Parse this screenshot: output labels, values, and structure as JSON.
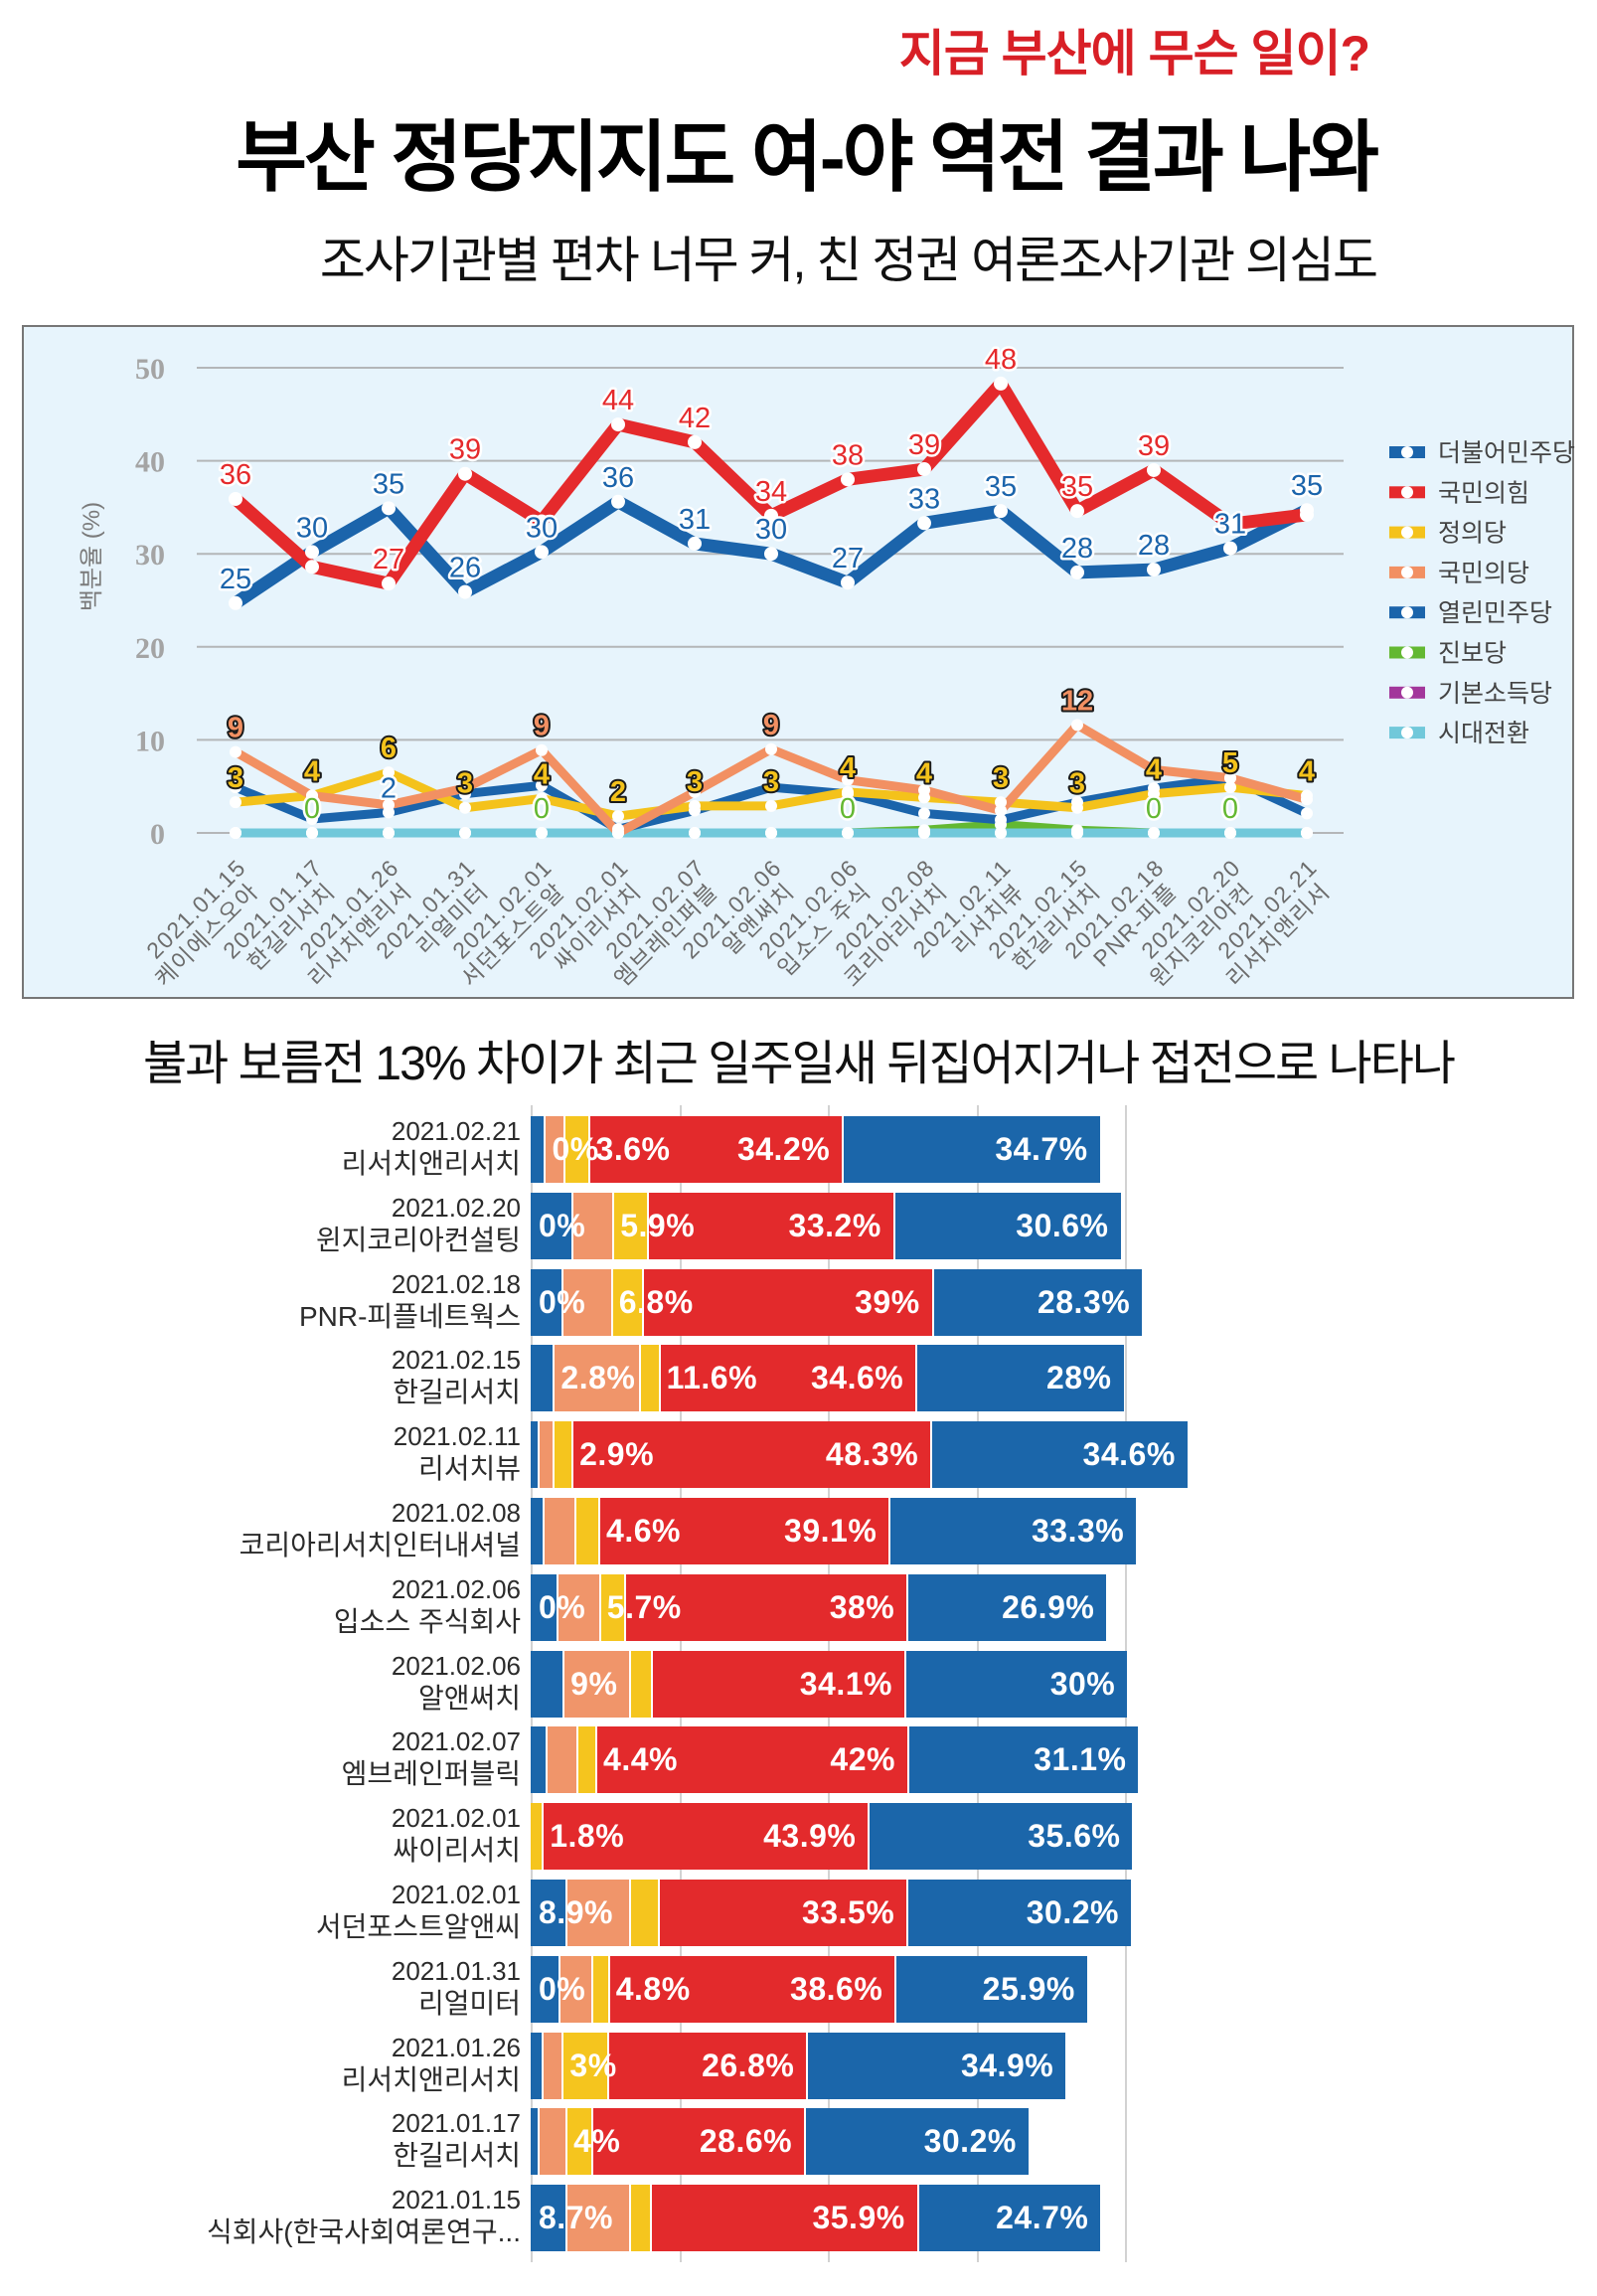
{
  "header": {
    "kicker": "지금 부산에 무슨 일이?",
    "title": "부산 정당지지도 여-야 역전 결과 나와",
    "subtitle": "조사기관별 편차 너무 커, 친 정권 여론조사기관 의심도"
  },
  "section_title": "불과 보름전 13% 차이가 최근 일주일새 뒤집어지거나 접전으로 나타나",
  "chart_data": [
    {
      "type": "line",
      "title": "",
      "xlabel": "",
      "ylabel": "백분율 (%)",
      "ylim": [
        0,
        50
      ],
      "yticks": [
        0,
        10,
        20,
        30,
        40,
        50
      ],
      "grid": true,
      "legend_position": "right",
      "categories": [
        {
          "date": "2021.01.15",
          "pollster": "케이에스오아"
        },
        {
          "date": "2021.01.17",
          "pollster": "한길리서치"
        },
        {
          "date": "2021.01.26",
          "pollster": "리서치앤리서"
        },
        {
          "date": "2021.01.31",
          "pollster": "리얼미터"
        },
        {
          "date": "2021.02.01",
          "pollster": "서던포스트알"
        },
        {
          "date": "2021.02.01",
          "pollster": "싸이리서치"
        },
        {
          "date": "2021.02.07",
          "pollster": "엠브레인퍼블"
        },
        {
          "date": "2021.02.06",
          "pollster": "알앤써치"
        },
        {
          "date": "2021.02.06",
          "pollster": "입소스 주식"
        },
        {
          "date": "2021.02.08",
          "pollster": "코리아리서치"
        },
        {
          "date": "2021.02.11",
          "pollster": "리서치뷰"
        },
        {
          "date": "2021.02.15",
          "pollster": "한길리서치"
        },
        {
          "date": "2021.02.18",
          "pollster": "PNR-피플"
        },
        {
          "date": "2021.02.20",
          "pollster": "윈지코리아컨"
        },
        {
          "date": "2021.02.21",
          "pollster": "리서치앤리서"
        }
      ],
      "series": [
        {
          "name": "더불어민주당",
          "color": "#1b64ab",
          "values": [
            24.7,
            30.2,
            34.9,
            25.9,
            30.2,
            35.6,
            31.1,
            30,
            26.9,
            33.3,
            34.6,
            28,
            28.3,
            30.6,
            34.7
          ],
          "labels": [
            "25",
            "30",
            "35",
            "26",
            "30",
            "36",
            "31",
            "30",
            "27",
            "33",
            "35",
            "28",
            "28",
            "31",
            "35"
          ]
        },
        {
          "name": "국민의힘",
          "color": "#e52a2c",
          "values": [
            35.9,
            28.6,
            26.8,
            38.6,
            33.5,
            43.9,
            42,
            34.1,
            38,
            39.1,
            48.3,
            34.6,
            39,
            33.2,
            34.2
          ],
          "labels": [
            "36",
            null,
            "27",
            "39",
            null,
            "44",
            "42",
            "34",
            "38",
            "39",
            "48",
            "35",
            "39",
            null,
            null
          ]
        },
        {
          "name": "정의당",
          "color": "#f4c21b",
          "values": [
            3.3,
            4,
            6.5,
            2.7,
            3.7,
            1.8,
            2.9,
            2.9,
            4.4,
            3.8,
            3.3,
            2.7,
            4.2,
            4.9,
            4
          ],
          "labels": [
            "3",
            "4",
            "6",
            "3",
            "4",
            "2",
            "3",
            "3",
            "4",
            "4",
            "3",
            "3",
            "4",
            "5",
            "4"
          ]
        },
        {
          "name": "국민의당",
          "color": "#f29062",
          "values": [
            8.7,
            4,
            3,
            4.8,
            8.9,
            0,
            4.4,
            9,
            5.7,
            4.6,
            2.4,
            11.6,
            6.8,
            5.9,
            3.6
          ],
          "labels": [
            "9",
            null,
            null,
            null,
            "9",
            null,
            null,
            "9",
            null,
            null,
            null,
            "12",
            null,
            null,
            null
          ]
        },
        {
          "name": "열린민주당",
          "color": "#1b64ab",
          "values": [
            4.9,
            1.5,
            2.2,
            4.2,
            5.1,
            0.4,
            2.4,
            4.9,
            4.2,
            2.1,
            1.4,
            3.3,
            4.8,
            5.9,
            2.1
          ],
          "labels": [
            null,
            null,
            "2",
            null,
            null,
            null,
            null,
            null,
            null,
            null,
            null,
            null,
            null,
            null,
            null
          ]
        },
        {
          "name": "진보당",
          "color": "#63b832",
          "values": [
            0,
            0,
            0,
            0,
            0,
            0,
            0,
            0,
            0,
            0.3,
            0.9,
            0.3,
            0,
            0,
            0
          ],
          "labels": [
            null,
            "0",
            null,
            null,
            "0",
            null,
            null,
            null,
            "0",
            null,
            null,
            null,
            "0",
            "0",
            null
          ]
        },
        {
          "name": "기본소득당",
          "color": "#a2379b",
          "values": [
            0,
            0,
            0,
            0,
            0,
            0,
            0,
            0,
            0,
            0,
            0,
            0,
            0,
            0,
            0
          ],
          "labels": [
            null,
            null,
            null,
            null,
            null,
            null,
            null,
            null,
            null,
            null,
            null,
            null,
            null,
            null,
            null
          ]
        },
        {
          "name": "시대전환",
          "color": "#71c8da",
          "values": [
            0,
            0,
            0,
            0,
            0,
            0,
            0,
            0,
            0,
            0,
            0,
            0,
            0,
            0,
            0
          ],
          "labels": [
            null,
            null,
            null,
            null,
            null,
            null,
            null,
            null,
            null,
            null,
            null,
            null,
            null,
            null,
            null
          ]
        }
      ]
    },
    {
      "type": "bar",
      "orientation": "horizontal",
      "stacked": true,
      "title": "",
      "gridlines": [
        0,
        20,
        40,
        60,
        80
      ],
      "segment_series": [
        "열린민주당",
        "국민의당",
        "정의당",
        "국민의힘",
        "더불어민주당"
      ],
      "colors": [
        "#1b66aa",
        "#f0956a",
        "#f5c51e",
        "#e32a2c",
        "#1b66aa"
      ],
      "rows": [
        {
          "date": "2021.02.21",
          "pollster": "리서치앤리서치",
          "values": [
            1.8,
            2.6,
            3.3,
            34.2,
            34.7
          ],
          "labels": [
            {
              "text": "0%",
              "segment": 1,
              "align": "start"
            },
            {
              "text": "3.6%",
              "segment": 3,
              "align": "start"
            },
            {
              "text": "34.2%",
              "segment": 3,
              "align": "end"
            },
            {
              "text": "34.7%",
              "segment": 4,
              "align": "end"
            }
          ]
        },
        {
          "date": "2021.02.20",
          "pollster": "윈지코리아컨설팅",
          "values": [
            5.5,
            5.5,
            4.6,
            33.2,
            30.6
          ],
          "labels": [
            {
              "text": "0%",
              "segment": 0,
              "align": "start"
            },
            {
              "text": "5.9%",
              "segment": 2,
              "align": "start"
            },
            {
              "text": "33.2%",
              "segment": 3,
              "align": "end"
            },
            {
              "text": "30.6%",
              "segment": 4,
              "align": "end"
            }
          ]
        },
        {
          "date": "2021.02.18",
          "pollster": "PNR-피플네트웍스",
          "values": [
            4.2,
            6.6,
            4.2,
            39,
            28.3
          ],
          "labels": [
            {
              "text": "0%",
              "segment": 0,
              "align": "start"
            },
            {
              "text": "6.8%",
              "segment": 2,
              "align": "start"
            },
            {
              "text": "39%",
              "segment": 3,
              "align": "end"
            },
            {
              "text": "28.3%",
              "segment": 4,
              "align": "end"
            }
          ]
        },
        {
          "date": "2021.02.15",
          "pollster": "한길리서치",
          "values": [
            3.0,
            11.6,
            2.6,
            34.6,
            28
          ],
          "labels": [
            {
              "text": "2.8%",
              "segment": 1,
              "align": "start"
            },
            {
              "text": "11.6%",
              "segment": 3,
              "align": "start"
            },
            {
              "text": "34.6%",
              "segment": 3,
              "align": "end"
            },
            {
              "text": "28%",
              "segment": 4,
              "align": "end"
            }
          ]
        },
        {
          "date": "2021.02.11",
          "pollster": "리서치뷰",
          "values": [
            0.9,
            2.0,
            2.6,
            48.3,
            34.6
          ],
          "labels": [
            {
              "text": "2.9%",
              "segment": 3,
              "align": "start"
            },
            {
              "text": "48.3%",
              "segment": 3,
              "align": "end"
            },
            {
              "text": "34.6%",
              "segment": 4,
              "align": "end"
            }
          ]
        },
        {
          "date": "2021.02.08",
          "pollster": "코리아리서치인터내셔널",
          "values": [
            1.6,
            4.3,
            3.2,
            39.1,
            33.3
          ],
          "labels": [
            {
              "text": "4.6%",
              "segment": 3,
              "align": "start"
            },
            {
              "text": "39.1%",
              "segment": 3,
              "align": "end"
            },
            {
              "text": "33.3%",
              "segment": 4,
              "align": "end"
            }
          ]
        },
        {
          "date": "2021.02.06",
          "pollster": "입소스 주식회사",
          "values": [
            3.5,
            5.7,
            3.4,
            38,
            26.9
          ],
          "labels": [
            {
              "text": "0%",
              "segment": 0,
              "align": "start"
            },
            {
              "text": "5.7%",
              "segment": 2,
              "align": "start"
            },
            {
              "text": "38%",
              "segment": 3,
              "align": "end"
            },
            {
              "text": "26.9%",
              "segment": 4,
              "align": "end"
            }
          ]
        },
        {
          "date": "2021.02.06",
          "pollster": "알앤써치",
          "values": [
            4.3,
            9.0,
            2.9,
            34.1,
            30
          ],
          "labels": [
            {
              "text": "9%",
              "segment": 1,
              "align": "start"
            },
            {
              "text": "34.1%",
              "segment": 3,
              "align": "end"
            },
            {
              "text": "30%",
              "segment": 4,
              "align": "end"
            }
          ]
        },
        {
          "date": "2021.02.07",
          "pollster": "엠브레인퍼블릭",
          "values": [
            2.0,
            4.1,
            2.6,
            42,
            31.1
          ],
          "labels": [
            {
              "text": "4.4%",
              "segment": 3,
              "align": "start"
            },
            {
              "text": "42%",
              "segment": 3,
              "align": "end"
            },
            {
              "text": "31.1%",
              "segment": 4,
              "align": "end"
            }
          ]
        },
        {
          "date": "2021.02.01",
          "pollster": "싸이리서치",
          "values": [
            0,
            0,
            1.5,
            43.9,
            35.6
          ],
          "labels": [
            {
              "text": "1.8%",
              "segment": 3,
              "align": "start"
            },
            {
              "text": "43.9%",
              "segment": 3,
              "align": "end"
            },
            {
              "text": "35.6%",
              "segment": 4,
              "align": "end"
            }
          ]
        },
        {
          "date": "2021.02.01",
          "pollster": "서던포스트알앤씨",
          "values": [
            4.7,
            8.5,
            3.9,
            33.5,
            30.2
          ],
          "labels": [
            {
              "text": "8.9%",
              "segment": 0,
              "align": "start"
            },
            {
              "text": "33.5%",
              "segment": 3,
              "align": "end"
            },
            {
              "text": "30.2%",
              "segment": 4,
              "align": "end"
            }
          ]
        },
        {
          "date": "2021.01.31",
          "pollster": "리얼미터",
          "values": [
            3.8,
            4.3,
            2.3,
            38.6,
            25.9
          ],
          "labels": [
            {
              "text": "0%",
              "segment": 0,
              "align": "start"
            },
            {
              "text": "4.8%",
              "segment": 3,
              "align": "start"
            },
            {
              "text": "38.6%",
              "segment": 3,
              "align": "end"
            },
            {
              "text": "25.9%",
              "segment": 4,
              "align": "end"
            }
          ]
        },
        {
          "date": "2021.01.26",
          "pollster": "리서치앤리서치",
          "values": [
            1.5,
            2.7,
            6.1,
            26.8,
            34.9
          ],
          "labels": [
            {
              "text": "3%",
              "segment": 2,
              "align": "start"
            },
            {
              "text": "26.8%",
              "segment": 3,
              "align": "end"
            },
            {
              "text": "34.9%",
              "segment": 4,
              "align": "end"
            }
          ]
        },
        {
          "date": "2021.01.17",
          "pollster": "한길리서치",
          "values": [
            1.0,
            3.7,
            3.5,
            28.6,
            30.2
          ],
          "labels": [
            {
              "text": "4%",
              "segment": 2,
              "align": "start"
            },
            {
              "text": "28.6%",
              "segment": 3,
              "align": "end"
            },
            {
              "text": "30.2%",
              "segment": 4,
              "align": "end"
            }
          ]
        },
        {
          "date": "2021.01.15",
          "pollster": "식회사(한국사회여론연구...",
          "values": [
            4.7,
            8.5,
            2.9,
            35.9,
            24.7
          ],
          "labels": [
            {
              "text": "8.7%",
              "segment": 0,
              "align": "start"
            },
            {
              "text": "35.9%",
              "segment": 3,
              "align": "end"
            },
            {
              "text": "24.7%",
              "segment": 4,
              "align": "end"
            }
          ]
        }
      ]
    }
  ]
}
